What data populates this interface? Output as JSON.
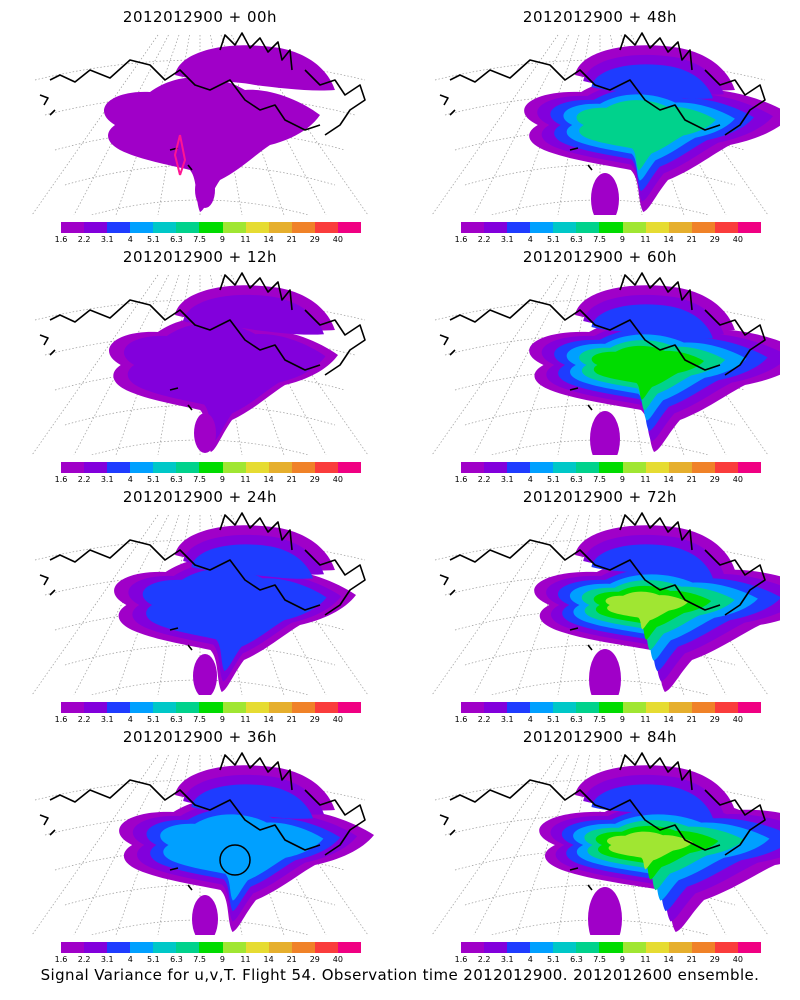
{
  "caption": "Signal Variance for u,v,T. Flight 54. Observation time 2012012900. 2012012600 ensemble.",
  "colorbar": {
    "colors": [
      "#a000c8",
      "#8200dc",
      "#1e3cff",
      "#00a0ff",
      "#00c8c8",
      "#00d28c",
      "#00dc00",
      "#a0e632",
      "#e6dc32",
      "#e6af2d",
      "#f08228",
      "#fa3c3c",
      "#f00082"
    ],
    "ticks": [
      "1.6",
      "2.2",
      "3.1",
      "4",
      "5.1",
      "6.3",
      "7.5",
      "9",
      "11",
      "14",
      "21",
      "29",
      "40"
    ]
  },
  "panels": [
    {
      "title": "2012012900 + 00h",
      "intensity": 0
    },
    {
      "title": "2012012900 + 48h",
      "intensity": 4
    },
    {
      "title": "2012012900 + 12h",
      "intensity": 1
    },
    {
      "title": "2012012900 + 60h",
      "intensity": 5
    },
    {
      "title": "2012012900 + 24h",
      "intensity": 2
    },
    {
      "title": "2012012900 + 72h",
      "intensity": 6
    },
    {
      "title": "2012012900 + 36h",
      "intensity": 3
    },
    {
      "title": "2012012900 + 84h",
      "intensity": 7
    }
  ]
}
